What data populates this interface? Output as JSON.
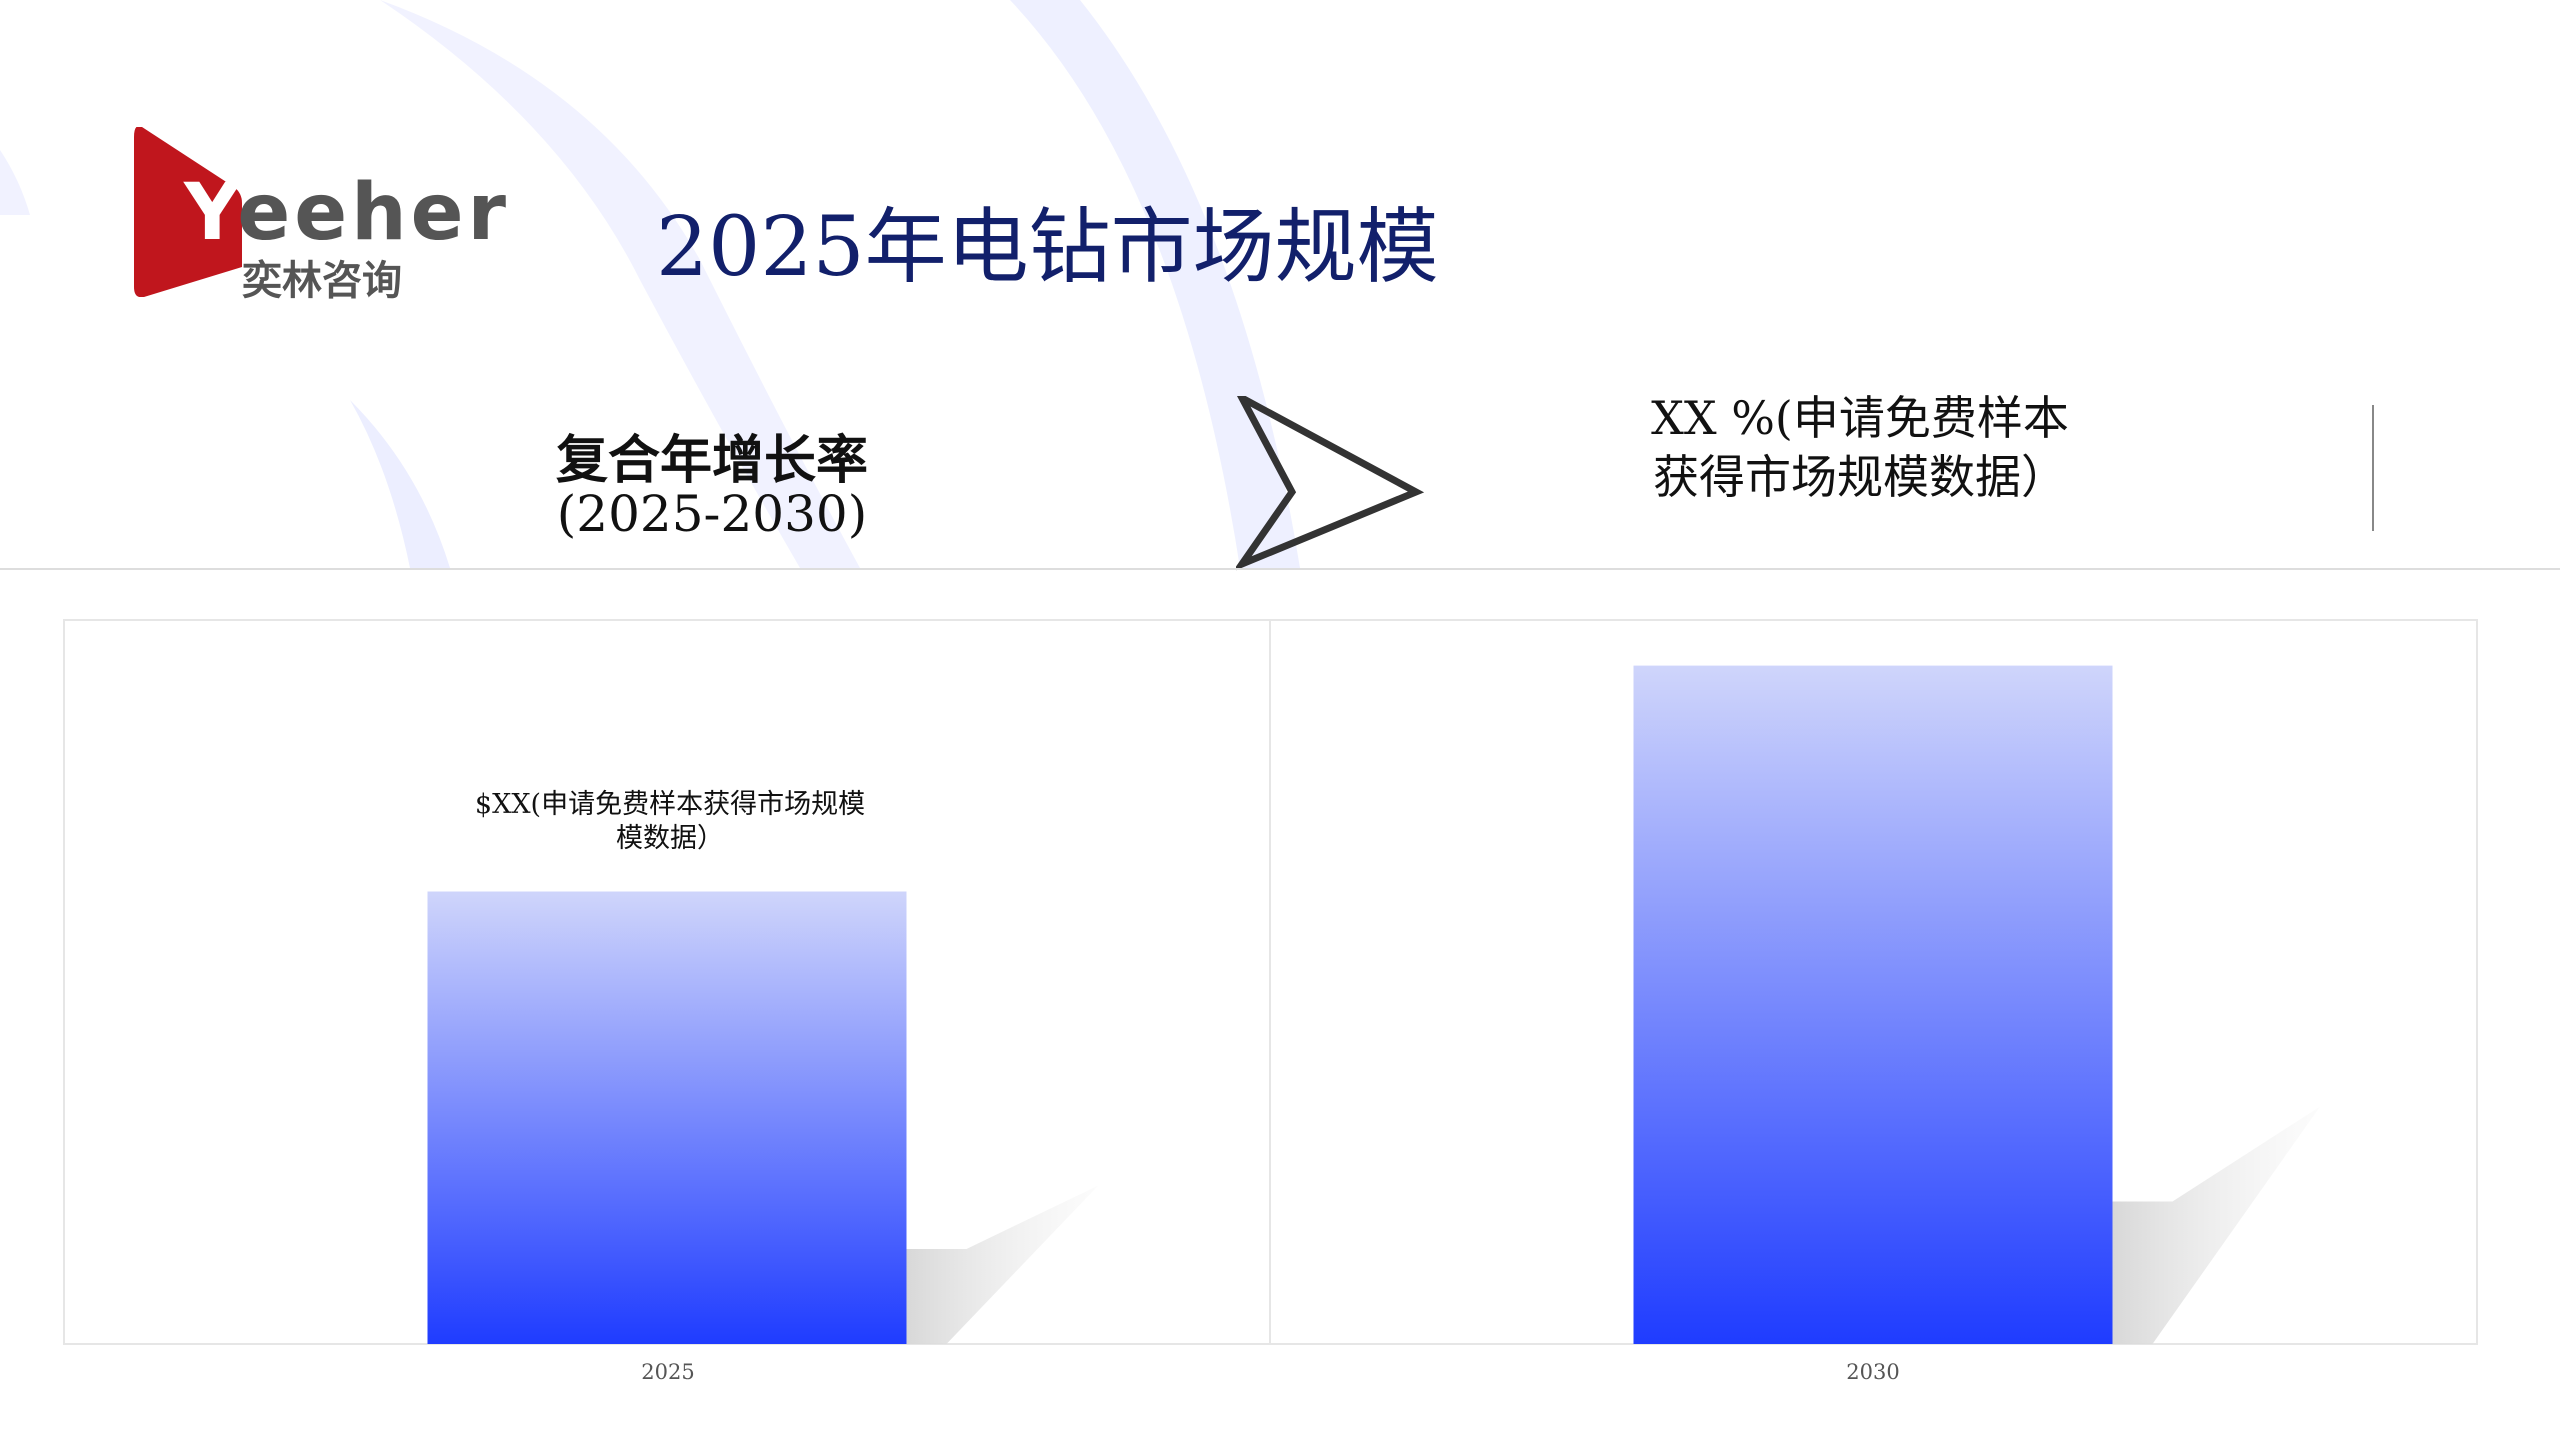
{
  "logo": {
    "text_en": "Yeeher",
    "text_cn": "奕林咨询",
    "color": "#c0161d"
  },
  "title": "2025年电钻市场规模",
  "cagr": {
    "label": "复合年增长率",
    "period": "(2025-2030)"
  },
  "cagr_value": {
    "line1": "XX %(申请免费样本",
    "line2": "获得市场规模数据）"
  },
  "chart_data": {
    "type": "bar",
    "categories": [
      "2025",
      "2030"
    ],
    "values": [
      0.625,
      0.937
    ],
    "data_labels": [
      "$XX(申请免费样本获得市场规模数据）",
      ""
    ],
    "data_label_lines": [
      "$XX(申请免费样本获得市场规模",
      "模数据）"
    ],
    "ylim": [
      0,
      1
    ],
    "grid": false,
    "bar_gradient": [
      "#cfd5fb",
      "#1f3cff"
    ]
  }
}
